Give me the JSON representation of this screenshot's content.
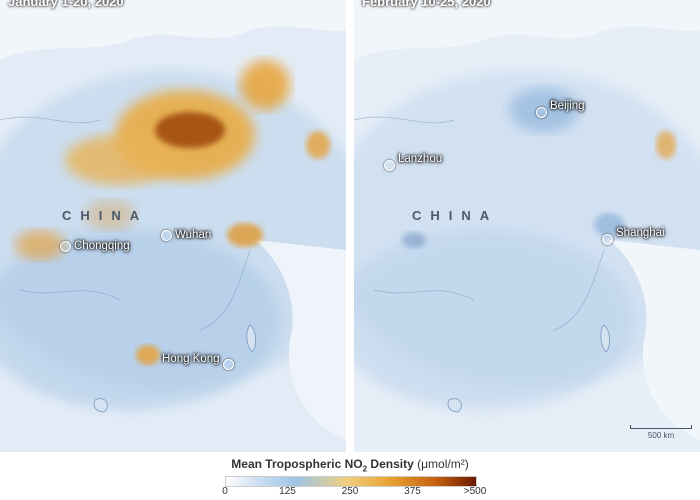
{
  "panels": {
    "left": {
      "date": "January 1-20, 2020",
      "country": "CHINA",
      "cities": [
        "Chongqing",
        "Wuhan",
        "Hong Kong"
      ]
    },
    "right": {
      "date": "February 10-25, 2020",
      "country": "CHINA",
      "cities": [
        "Beijing",
        "Lanzhou",
        "Shanghai"
      ],
      "scale": "500 km"
    }
  },
  "legend": {
    "title": "Mean Tropospheric NO",
    "subscript": "2",
    "title_suffix": " Density",
    "units": "(μmol/m²)",
    "ticks": [
      "0",
      "125",
      "250",
      "375",
      ">500"
    ],
    "colors": [
      "#ffffff",
      "#9cc4e6",
      "#f0d080",
      "#e8a030",
      "#6b1a00"
    ]
  }
}
